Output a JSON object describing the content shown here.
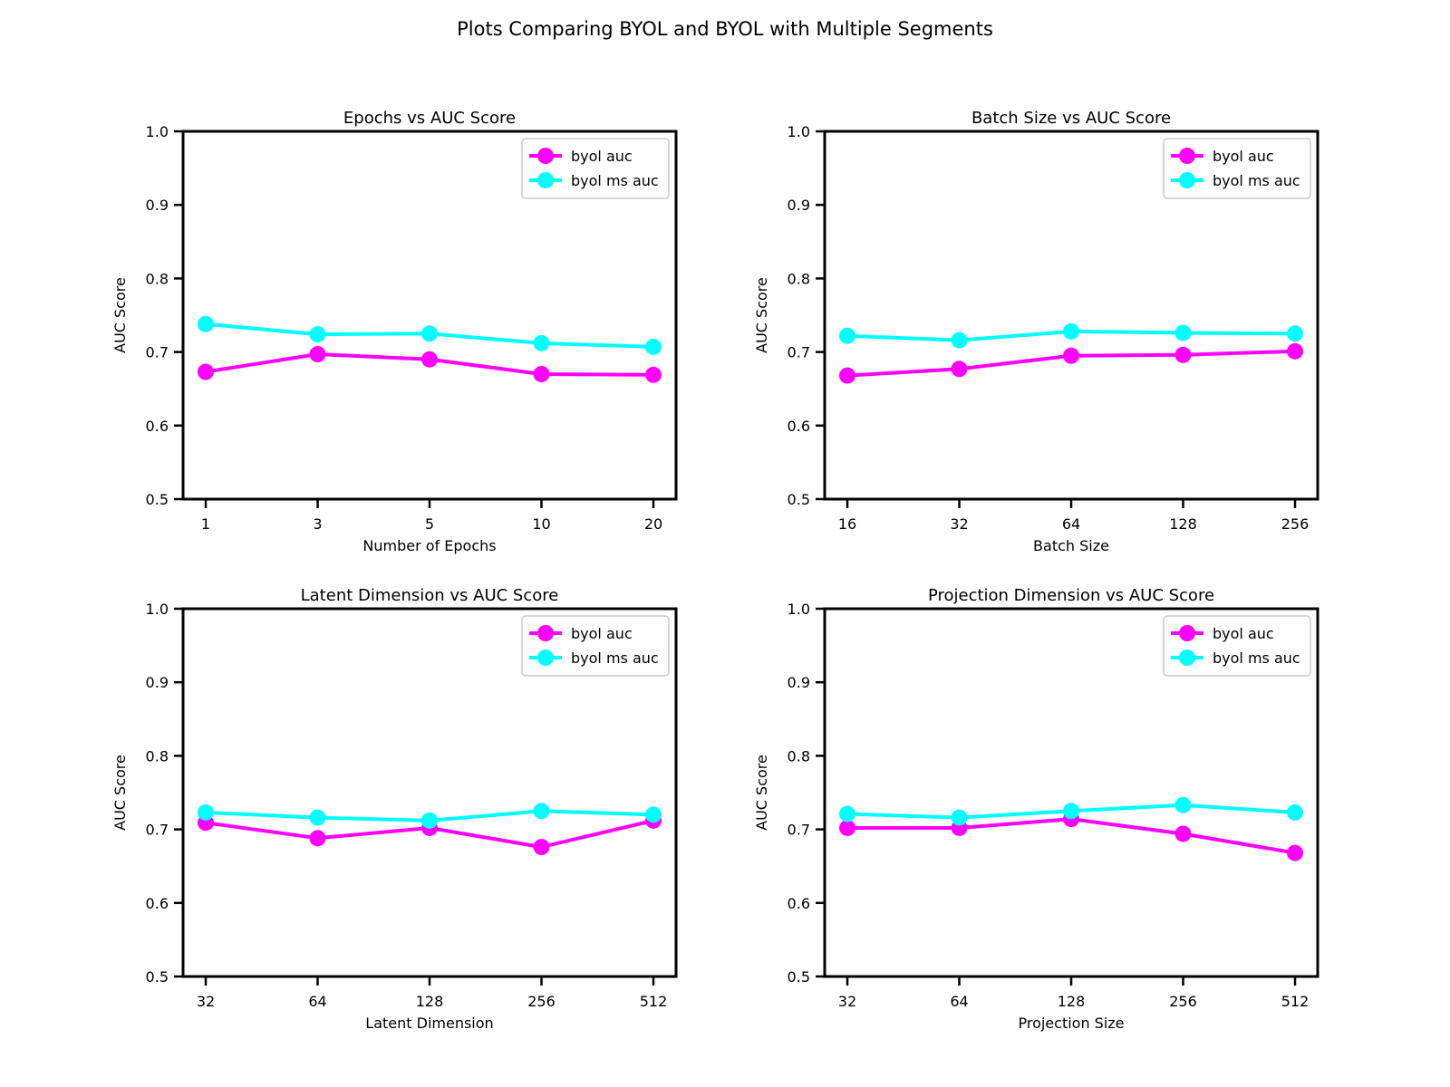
{
  "figure": {
    "title": "Plots Comparing BYOL and BYOL with Multiple Segments"
  },
  "chart_data": [
    {
      "type": "line",
      "title": "Epochs vs AUC Score",
      "xlabel": "Number of Epochs",
      "ylabel": "AUC Score",
      "categories": [
        "1",
        "3",
        "5",
        "10",
        "20"
      ],
      "ylim": [
        0.5,
        1.0
      ],
      "yticks": [
        "0.5",
        "0.6",
        "0.7",
        "0.8",
        "0.9",
        "1.0"
      ],
      "grid": false,
      "legend_position": "top-right",
      "series": [
        {
          "name": "byol auc",
          "color": "#ff00ff",
          "values": [
            0.673,
            0.697,
            0.69,
            0.67,
            0.669
          ]
        },
        {
          "name": "byol ms auc",
          "color": "#00ffff",
          "values": [
            0.738,
            0.724,
            0.725,
            0.712,
            0.707
          ]
        }
      ]
    },
    {
      "type": "line",
      "title": "Batch Size vs AUC Score",
      "xlabel": "Batch Size",
      "ylabel": "AUC Score",
      "categories": [
        "16",
        "32",
        "64",
        "128",
        "256"
      ],
      "ylim": [
        0.5,
        1.0
      ],
      "yticks": [
        "0.5",
        "0.6",
        "0.7",
        "0.8",
        "0.9",
        "1.0"
      ],
      "grid": false,
      "legend_position": "top-right",
      "series": [
        {
          "name": "byol auc",
          "color": "#ff00ff",
          "values": [
            0.668,
            0.677,
            0.695,
            0.696,
            0.701
          ]
        },
        {
          "name": "byol ms auc",
          "color": "#00ffff",
          "values": [
            0.722,
            0.716,
            0.728,
            0.726,
            0.725
          ]
        }
      ]
    },
    {
      "type": "line",
      "title": "Latent Dimension vs AUC Score",
      "xlabel": "Latent Dimension",
      "ylabel": "AUC Score",
      "categories": [
        "32",
        "64",
        "128",
        "256",
        "512"
      ],
      "ylim": [
        0.5,
        1.0
      ],
      "yticks": [
        "0.5",
        "0.6",
        "0.7",
        "0.8",
        "0.9",
        "1.0"
      ],
      "grid": false,
      "legend_position": "top-right",
      "series": [
        {
          "name": "byol auc",
          "color": "#ff00ff",
          "values": [
            0.709,
            0.688,
            0.702,
            0.676,
            0.712
          ]
        },
        {
          "name": "byol ms auc",
          "color": "#00ffff",
          "values": [
            0.723,
            0.716,
            0.712,
            0.725,
            0.72
          ]
        }
      ]
    },
    {
      "type": "line",
      "title": "Projection Dimension vs AUC Score",
      "xlabel": "Projection Size",
      "ylabel": "AUC Score",
      "categories": [
        "32",
        "64",
        "128",
        "256",
        "512"
      ],
      "ylim": [
        0.5,
        1.0
      ],
      "yticks": [
        "0.5",
        "0.6",
        "0.7",
        "0.8",
        "0.9",
        "1.0"
      ],
      "grid": false,
      "legend_position": "top-right",
      "series": [
        {
          "name": "byol auc",
          "color": "#ff00ff",
          "values": [
            0.702,
            0.702,
            0.714,
            0.694,
            0.668
          ]
        },
        {
          "name": "byol ms auc",
          "color": "#00ffff",
          "values": [
            0.721,
            0.716,
            0.725,
            0.733,
            0.723
          ]
        }
      ]
    }
  ]
}
